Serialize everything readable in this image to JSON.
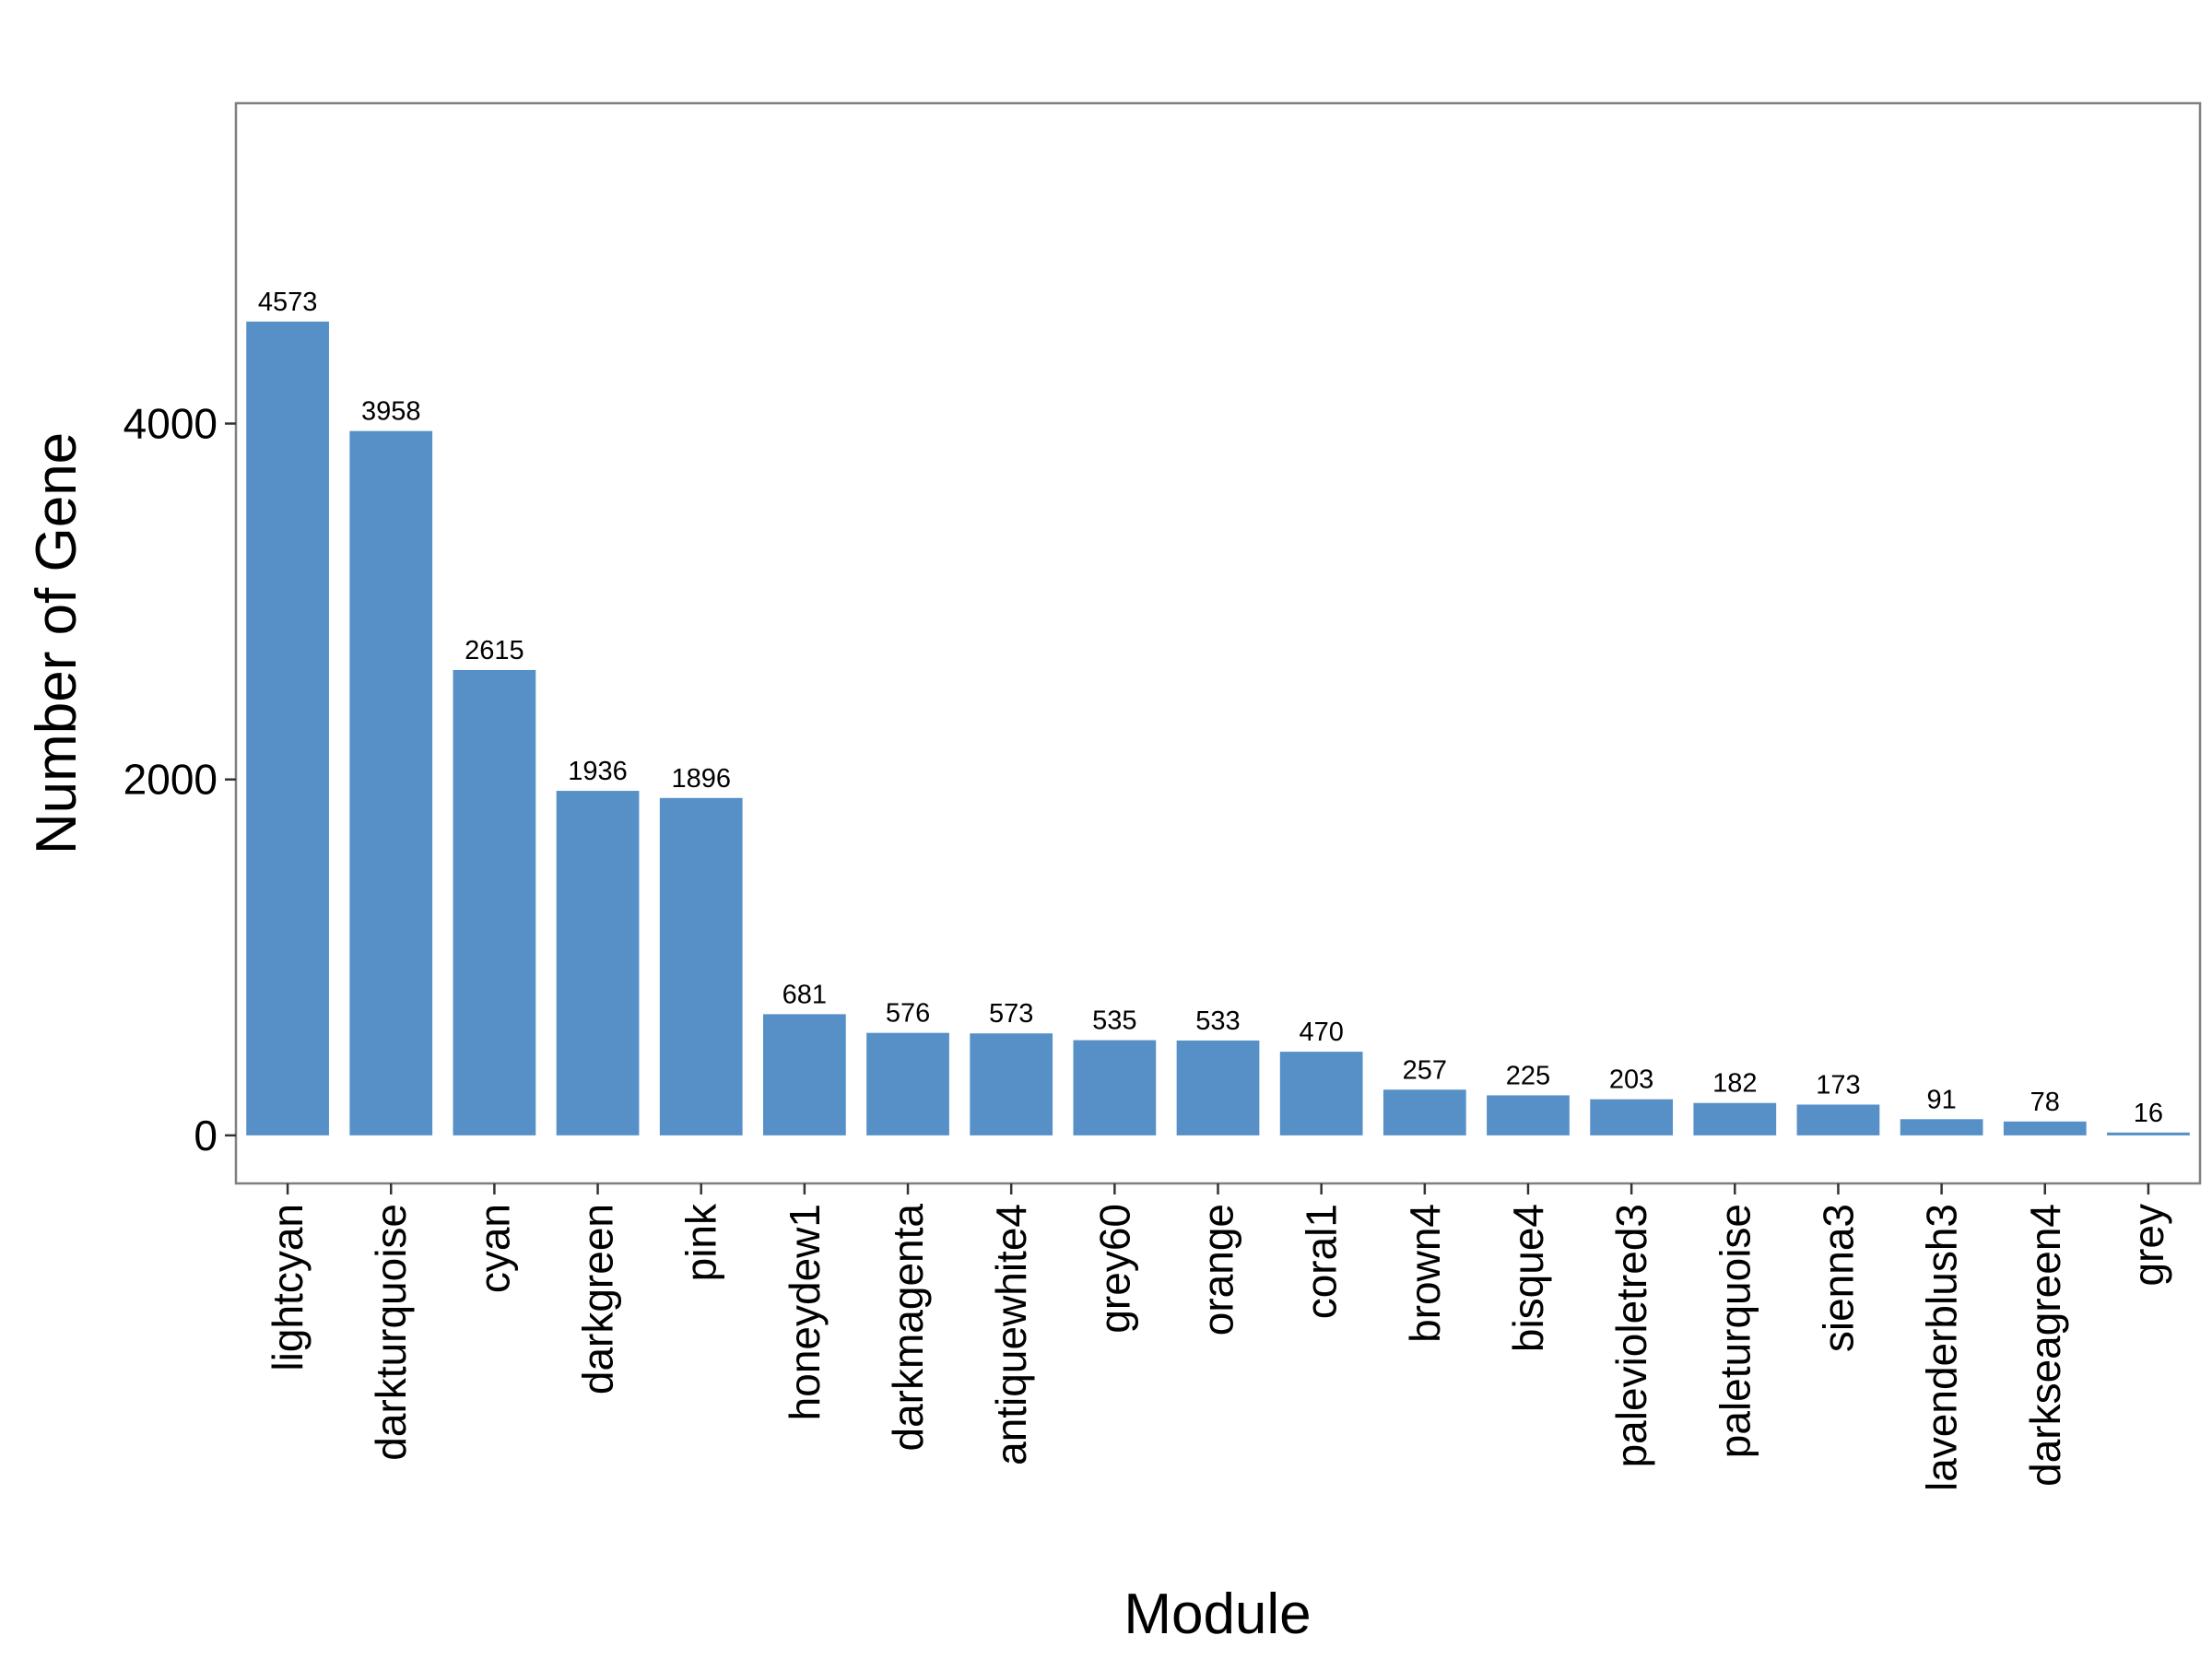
{
  "chart_data": {
    "type": "bar",
    "title": "",
    "xlabel": "Module",
    "ylabel": "Number of Gene",
    "categories": [
      "lightcyan",
      "darkturquoise",
      "cyan",
      "darkgreen",
      "pink",
      "honeydew1",
      "darkmagenta",
      "antiquewhite4",
      "grey60",
      "orange",
      "coral1",
      "brown4",
      "bisque4",
      "palevioletred3",
      "paleturquoise",
      "sienna3",
      "lavenderblush3",
      "darkseagreen4",
      "grey"
    ],
    "values": [
      4573,
      3958,
      2615,
      1936,
      1896,
      681,
      576,
      573,
      535,
      533,
      470,
      257,
      225,
      203,
      182,
      173,
      91,
      78,
      16
    ],
    "data_labels": [
      "4573",
      "3958",
      "2615",
      "1936",
      "1896",
      "681",
      "576",
      "573",
      "535",
      "533",
      "470",
      "257",
      "225",
      "203",
      "182",
      "173",
      "91",
      "78",
      "16"
    ],
    "y_ticks": [
      0,
      2000,
      4000
    ],
    "y_tick_labels": [
      "0",
      "2000",
      "4000"
    ],
    "ylim": [
      -270,
      5800
    ],
    "grid": false,
    "legend": "none",
    "bar_color": "#5690C7",
    "panel_border_color": "#7F7F7F"
  }
}
